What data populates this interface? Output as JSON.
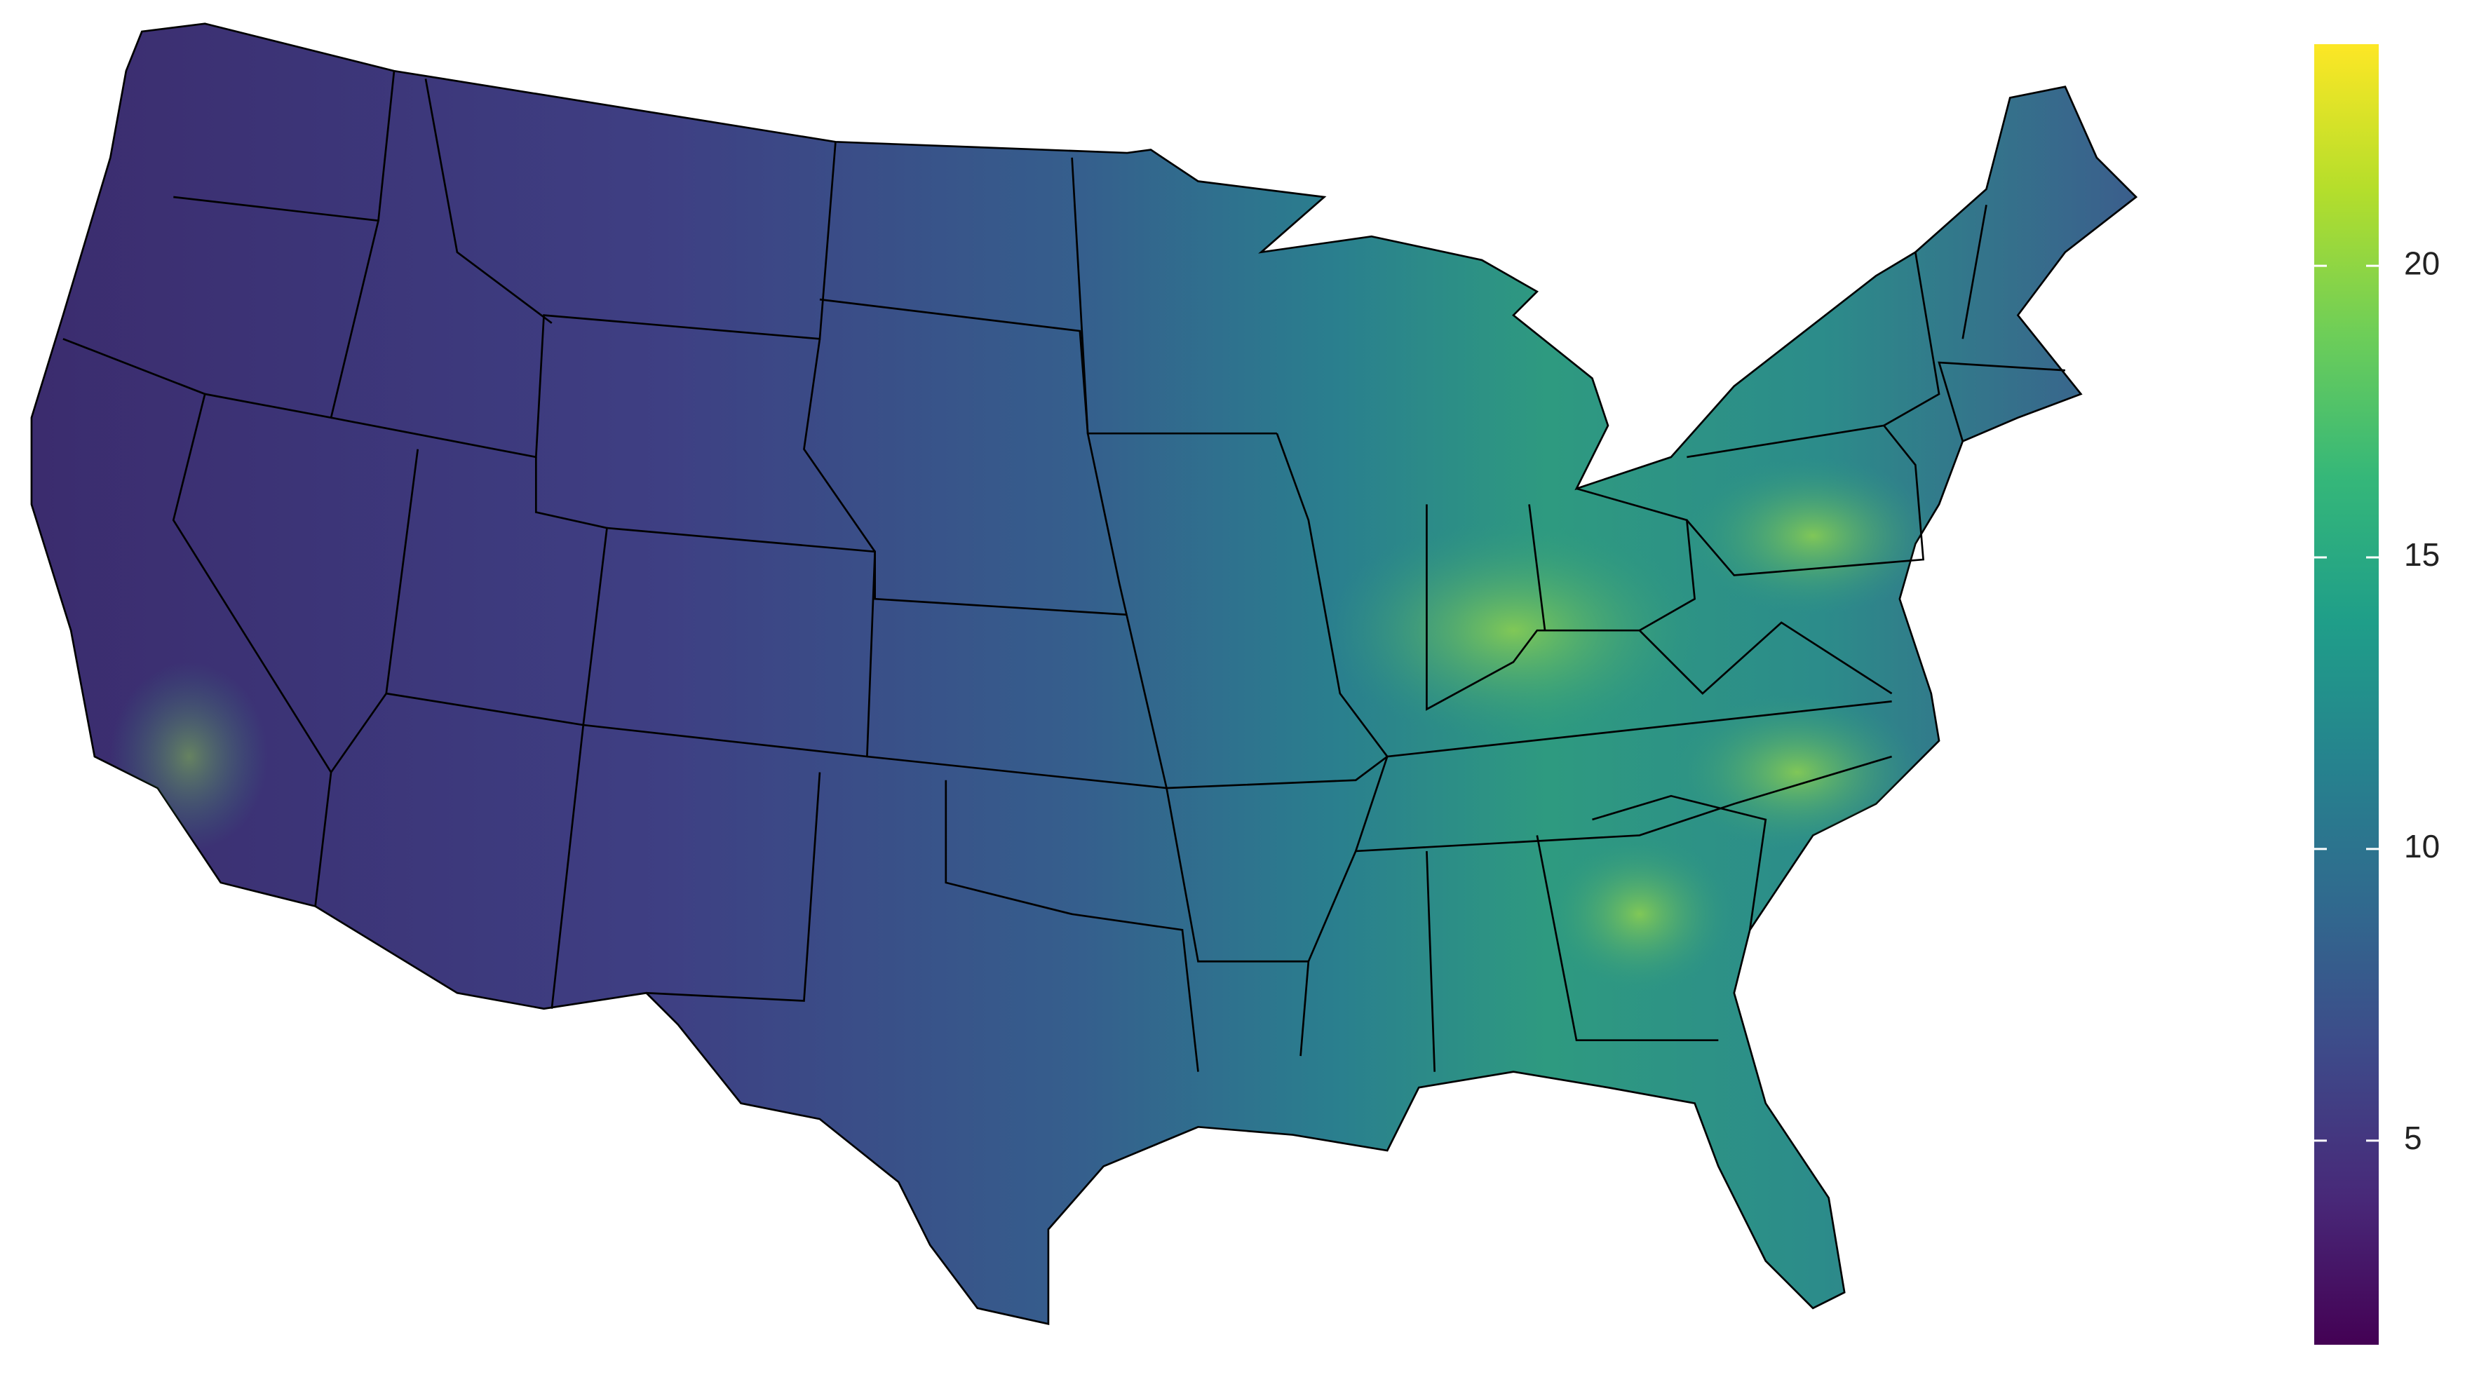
{
  "chart_data": {
    "type": "colorbar",
    "colormap": "viridis",
    "ylim": [
      1.5,
      23.8
    ],
    "yticks": [
      5,
      10,
      15,
      20
    ]
  }
}
